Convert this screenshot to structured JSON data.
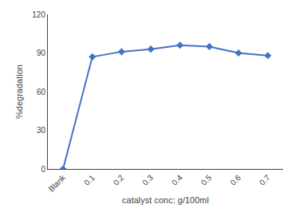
{
  "chart_data": {
    "type": "line",
    "categories": [
      "Blank",
      "0.1",
      "0.2",
      "0.3",
      "0.4",
      "0.5",
      "0.6",
      "0.7"
    ],
    "values": [
      0,
      87,
      91,
      93,
      96,
      95,
      90,
      88
    ],
    "color": "#4472C4",
    "marker": "diamond",
    "xlabel": "catalyst conc: g/100ml",
    "ylabel": "%degradation",
    "ylim": [
      0,
      120
    ],
    "yticks": [
      0,
      30,
      60,
      90,
      120
    ],
    "grid": false
  }
}
